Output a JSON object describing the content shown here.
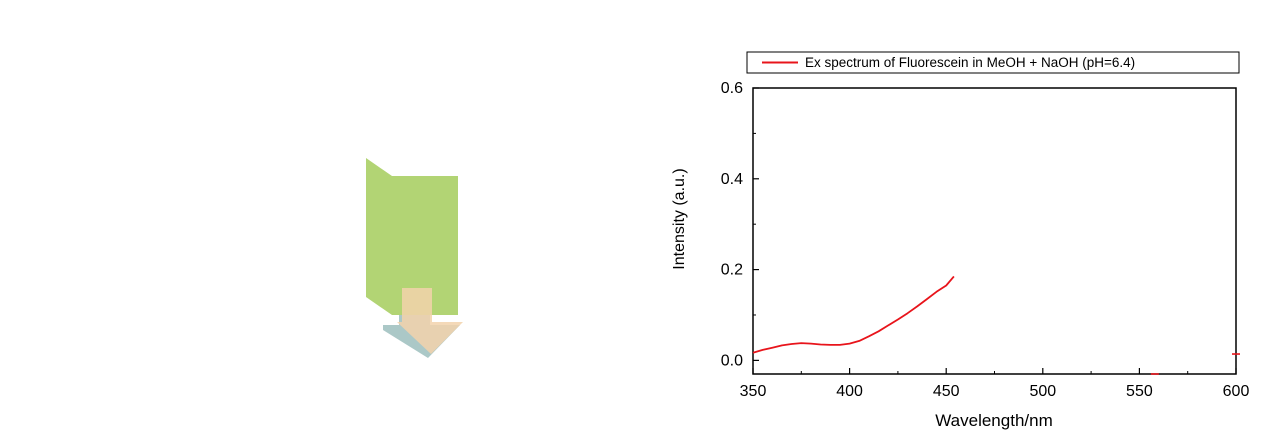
{
  "colors": {
    "series": "#e8141b",
    "axis": "#000000",
    "green_panel": "#b2d474",
    "arrow_orange": "#f2d2ac",
    "arrow_shadow": "#8fb6b4"
  },
  "chart_data": {
    "type": "line",
    "title": "",
    "xlabel": "Wavelength/nm",
    "ylabel": "Intensity (a.u.)",
    "xlim": [
      350,
      600
    ],
    "ylim": [
      -0.03,
      0.6
    ],
    "xticks": [
      350,
      400,
      450,
      500,
      550,
      600
    ],
    "yticks": [
      0.0,
      0.2,
      0.4,
      0.6
    ],
    "xtick_labels": [
      "350",
      "400",
      "450",
      "500",
      "550",
      "600"
    ],
    "ytick_labels": [
      "0.0",
      "0.2",
      "0.4",
      "0.6"
    ],
    "grid": false,
    "legend_position": "top",
    "series": [
      {
        "name": "Ex spectrum of Fluorescein in MeOH + NaOH (pH=6.4)",
        "x": [
          350,
          355,
          360,
          365,
          370,
          375,
          380,
          385,
          390,
          395,
          400,
          405,
          410,
          415,
          420,
          425,
          430,
          435,
          440,
          445,
          450,
          454
        ],
        "y": [
          0.017,
          0.023,
          0.028,
          0.033,
          0.036,
          0.038,
          0.037,
          0.035,
          0.034,
          0.034,
          0.037,
          0.043,
          0.053,
          0.064,
          0.077,
          0.09,
          0.104,
          0.119,
          0.135,
          0.151,
          0.165,
          0.185
        ]
      }
    ],
    "stray_points": [
      {
        "x": 558,
        "y": -0.03
      },
      {
        "x": 600,
        "y": 0.014
      }
    ]
  }
}
